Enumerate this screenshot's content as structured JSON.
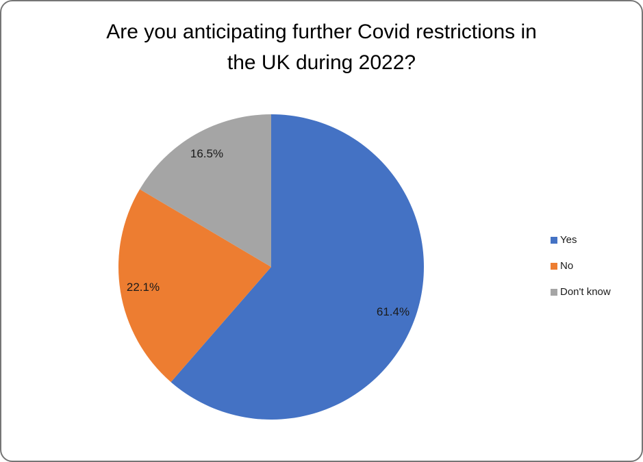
{
  "frame": {
    "border_color": "#757575",
    "background": "#ffffff"
  },
  "chart_data": {
    "type": "pie",
    "title": "Are you anticipating further Covid restrictions in the UK during 2022?",
    "title_lines": [
      "Are you anticipating further Covid restrictions in",
      "the UK during 2022?"
    ],
    "categories": [
      "Yes",
      "No",
      "Don't know"
    ],
    "values": [
      61.4,
      22.1,
      16.5
    ],
    "data_labels": [
      "61.4%",
      "22.1%",
      "16.5%"
    ],
    "colors": [
      "#4472C4",
      "#ED7D31",
      "#A5A5A5"
    ],
    "legend_position": "right",
    "legend_entries": [
      "Yes",
      "No",
      "Don't know"
    ],
    "start_angle_deg": 0,
    "direction": "clockwise",
    "data_label_color": "#1a1a1a",
    "title_color": "#000000"
  }
}
